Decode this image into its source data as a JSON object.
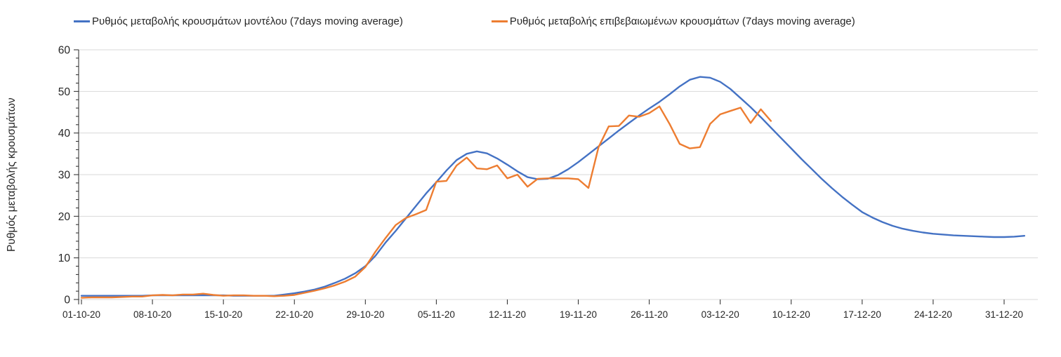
{
  "chart_data": {
    "type": "line",
    "title": "",
    "xlabel": "",
    "ylabel": "Ρυθμός μεταβολής κρουσμάτων",
    "ylim": [
      0,
      60
    ],
    "y_major_ticks": [
      0,
      10,
      20,
      30,
      40,
      50,
      60
    ],
    "y_minor_tick_step": 2,
    "grid": "horizontal-major-on",
    "legend_position": "top",
    "x_tick_labels": [
      "01-10-20",
      "08-10-20",
      "15-10-20",
      "22-10-20",
      "29-10-20",
      "05-11-20",
      "12-11-20",
      "19-11-20",
      "26-11-20",
      "03-12-20",
      "10-12-20",
      "17-12-20",
      "24-12-20",
      "31-12-20"
    ],
    "x_tick_days": [
      0,
      7,
      14,
      21,
      28,
      35,
      42,
      49,
      56,
      63,
      70,
      77,
      84,
      91
    ],
    "series": [
      {
        "name": "Ρυθμός μεταβολής κρουσμάτων μοντέλου (7days moving average)",
        "color": "#4472C4",
        "start_day": 0,
        "values": [
          0.9,
          0.9,
          0.9,
          0.9,
          0.9,
          0.9,
          0.9,
          1.0,
          1.0,
          1.0,
          1.0,
          1.0,
          1.0,
          1.0,
          1.0,
          0.9,
          0.9,
          0.9,
          0.9,
          0.9,
          1.2,
          1.5,
          1.9,
          2.4,
          3.1,
          4.0,
          5.0,
          6.3,
          8.0,
          10.5,
          13.7,
          16.5,
          19.5,
          22.5,
          25.5,
          28.2,
          31.0,
          33.5,
          35.0,
          35.6,
          35.1,
          33.9,
          32.4,
          30.8,
          29.4,
          28.9,
          29.0,
          29.9,
          31.3,
          33.0,
          34.9,
          36.8,
          38.7,
          40.6,
          42.4,
          44.2,
          45.9,
          47.5,
          49.3,
          51.2,
          52.8,
          53.5,
          53.3,
          52.3,
          50.6,
          48.4,
          46.2,
          43.8,
          41.3,
          38.8,
          36.3,
          33.8,
          31.4,
          29.0,
          26.8,
          24.7,
          22.8,
          21.0,
          19.7,
          18.6,
          17.7,
          17.0,
          16.5,
          16.1,
          15.8,
          15.6,
          15.4,
          15.3,
          15.2,
          15.1,
          15.0,
          15.0,
          15.1,
          15.3
        ]
      },
      {
        "name": "Ρυθμός μεταβολής επιβεβαιωμένων κρουσμάτων (7days moving average)",
        "color": "#ED7D31",
        "start_day": 0,
        "values": [
          0.4,
          0.5,
          0.5,
          0.5,
          0.6,
          0.7,
          0.7,
          1.0,
          1.1,
          1.0,
          1.2,
          1.2,
          1.4,
          1.1,
          0.9,
          1.0,
          1.0,
          0.9,
          0.9,
          0.8,
          0.9,
          1.1,
          1.6,
          2.1,
          2.7,
          3.4,
          4.3,
          5.5,
          7.8,
          11.5,
          14.8,
          17.9,
          19.6,
          20.5,
          21.5,
          28.3,
          28.5,
          32.2,
          34.1,
          31.5,
          31.3,
          32.2,
          29.1,
          30.0,
          27.1,
          29.0,
          29.1,
          29.1,
          29.1,
          28.9,
          26.8,
          36.6,
          41.6,
          41.7,
          44.2,
          43.9,
          44.8,
          46.4,
          42.2,
          37.4,
          36.3,
          36.6,
          42.2,
          44.5,
          45.3,
          46.1,
          42.4,
          45.7,
          42.9
        ]
      }
    ],
    "colors": {
      "gridline": "#D9D9D9",
      "axis_line": "#262626",
      "tick_label": "#262626",
      "legend_text": "#262626"
    }
  }
}
